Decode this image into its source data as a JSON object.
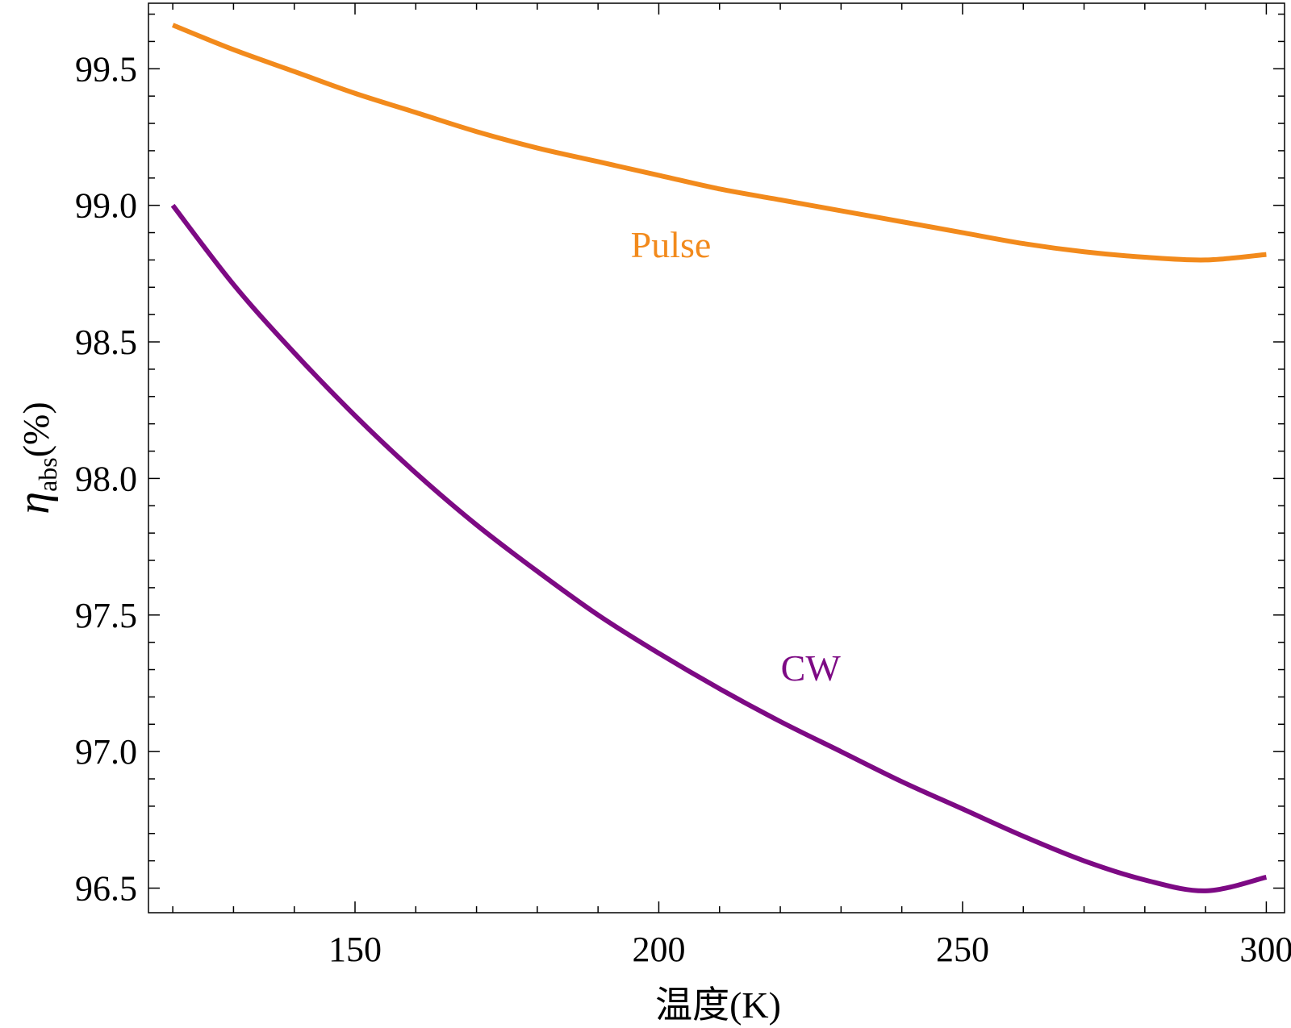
{
  "chart_data": {
    "type": "line",
    "title": "",
    "xlabel": "温度(K)",
    "ylabel": {
      "symbol": "η",
      "subscript": "abs",
      "suffix": "(%)"
    },
    "xlim": [
      116,
      303
    ],
    "ylim": [
      96.41,
      99.74
    ],
    "xticks": [
      150,
      200,
      250,
      300
    ],
    "xtick_labels": [
      "150",
      "200",
      "250",
      "300"
    ],
    "x_minor_ticks": [
      120,
      130,
      140,
      160,
      170,
      180,
      190,
      210,
      220,
      230,
      240,
      260,
      270,
      280,
      290
    ],
    "yticks": [
      96.5,
      97.0,
      97.5,
      98.0,
      98.5,
      99.0,
      99.5
    ],
    "ytick_labels": [
      "96.5",
      "97.0",
      "97.5",
      "98.0",
      "98.5",
      "99.0",
      "99.5"
    ],
    "y_minor_ticks": [
      96.6,
      96.7,
      96.8,
      96.9,
      97.1,
      97.2,
      97.3,
      97.4,
      97.6,
      97.7,
      97.8,
      97.9,
      98.1,
      98.2,
      98.3,
      98.4,
      98.6,
      98.7,
      98.8,
      98.9,
      99.1,
      99.2,
      99.3,
      99.4,
      99.6,
      99.7
    ],
    "grid": false,
    "legend": "none",
    "series": [
      {
        "name": "Pulse",
        "color": "#f28a1c",
        "label": "Pulse",
        "label_anchor": [
          202,
          98.81
        ],
        "x": [
          120,
          130,
          140,
          150,
          160,
          170,
          180,
          190,
          200,
          210,
          220,
          230,
          240,
          250,
          260,
          270,
          280,
          290,
          300
        ],
        "values": [
          99.66,
          99.57,
          99.49,
          99.41,
          99.34,
          99.27,
          99.21,
          99.16,
          99.11,
          99.06,
          99.02,
          98.98,
          98.94,
          98.9,
          98.86,
          98.83,
          98.81,
          98.8,
          98.82
        ]
      },
      {
        "name": "CW",
        "color": "#7d0a84",
        "label": "CW",
        "label_anchor": [
          225,
          97.26
        ],
        "x": [
          120,
          130,
          140,
          150,
          160,
          170,
          180,
          190,
          200,
          210,
          220,
          230,
          240,
          250,
          260,
          270,
          280,
          290,
          300
        ],
        "values": [
          99.0,
          98.71,
          98.46,
          98.23,
          98.02,
          97.83,
          97.66,
          97.5,
          97.36,
          97.23,
          97.11,
          97.0,
          96.89,
          96.79,
          96.69,
          96.6,
          96.53,
          96.49,
          96.54
        ]
      }
    ]
  }
}
